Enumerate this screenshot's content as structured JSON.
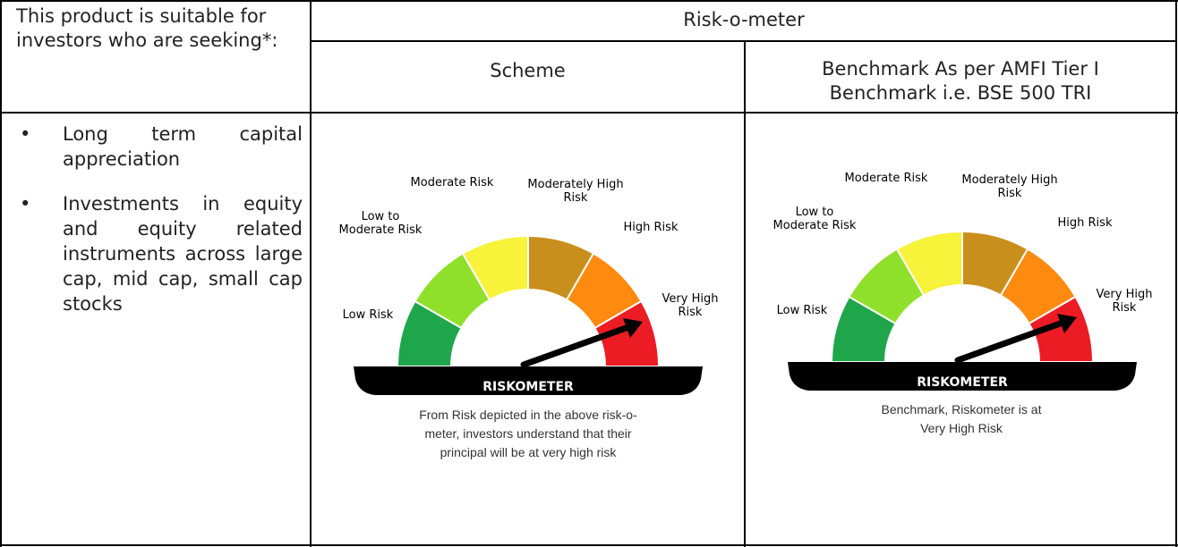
{
  "table": {
    "col1_header": "This product is suitable for investors who are seeking*:",
    "group_header": "Risk-o-meter",
    "scheme_header": "Scheme",
    "benchmark_header": "Benchmark As per AMFI Tier I Benchmark i.e. BSE 500 TRI"
  },
  "objectives": [
    "Long term capital appreciation",
    "Investments in equity and equity related instruments across large cap, mid cap, small cap stocks"
  ],
  "bullet_glyph": "•",
  "riskometer": {
    "bar_label": "RISKOMETER",
    "labels": {
      "low": [
        "Low Risk"
      ],
      "low_moderate": [
        "Low to",
        "Moderate Risk"
      ],
      "moderate": [
        "Moderate Risk"
      ],
      "moderately_high": [
        "Moderately High",
        "Risk"
      ],
      "high": [
        "High Risk"
      ],
      "very_high": [
        "Very High",
        "Risk"
      ]
    },
    "colors": [
      "#1fa64b",
      "#8fe02a",
      "#f7f23a",
      "#c98f1d",
      "#ff8a10",
      "#ec1c24"
    ],
    "level": "Very High Risk"
  },
  "scheme_caption": [
    "From Risk depicted in the above risk-o-",
    "meter, investors understand that their",
    "principal will be at very high risk"
  ],
  "benchmark_caption": [
    "Benchmark, Riskometer is at",
    "Very High Risk"
  ]
}
